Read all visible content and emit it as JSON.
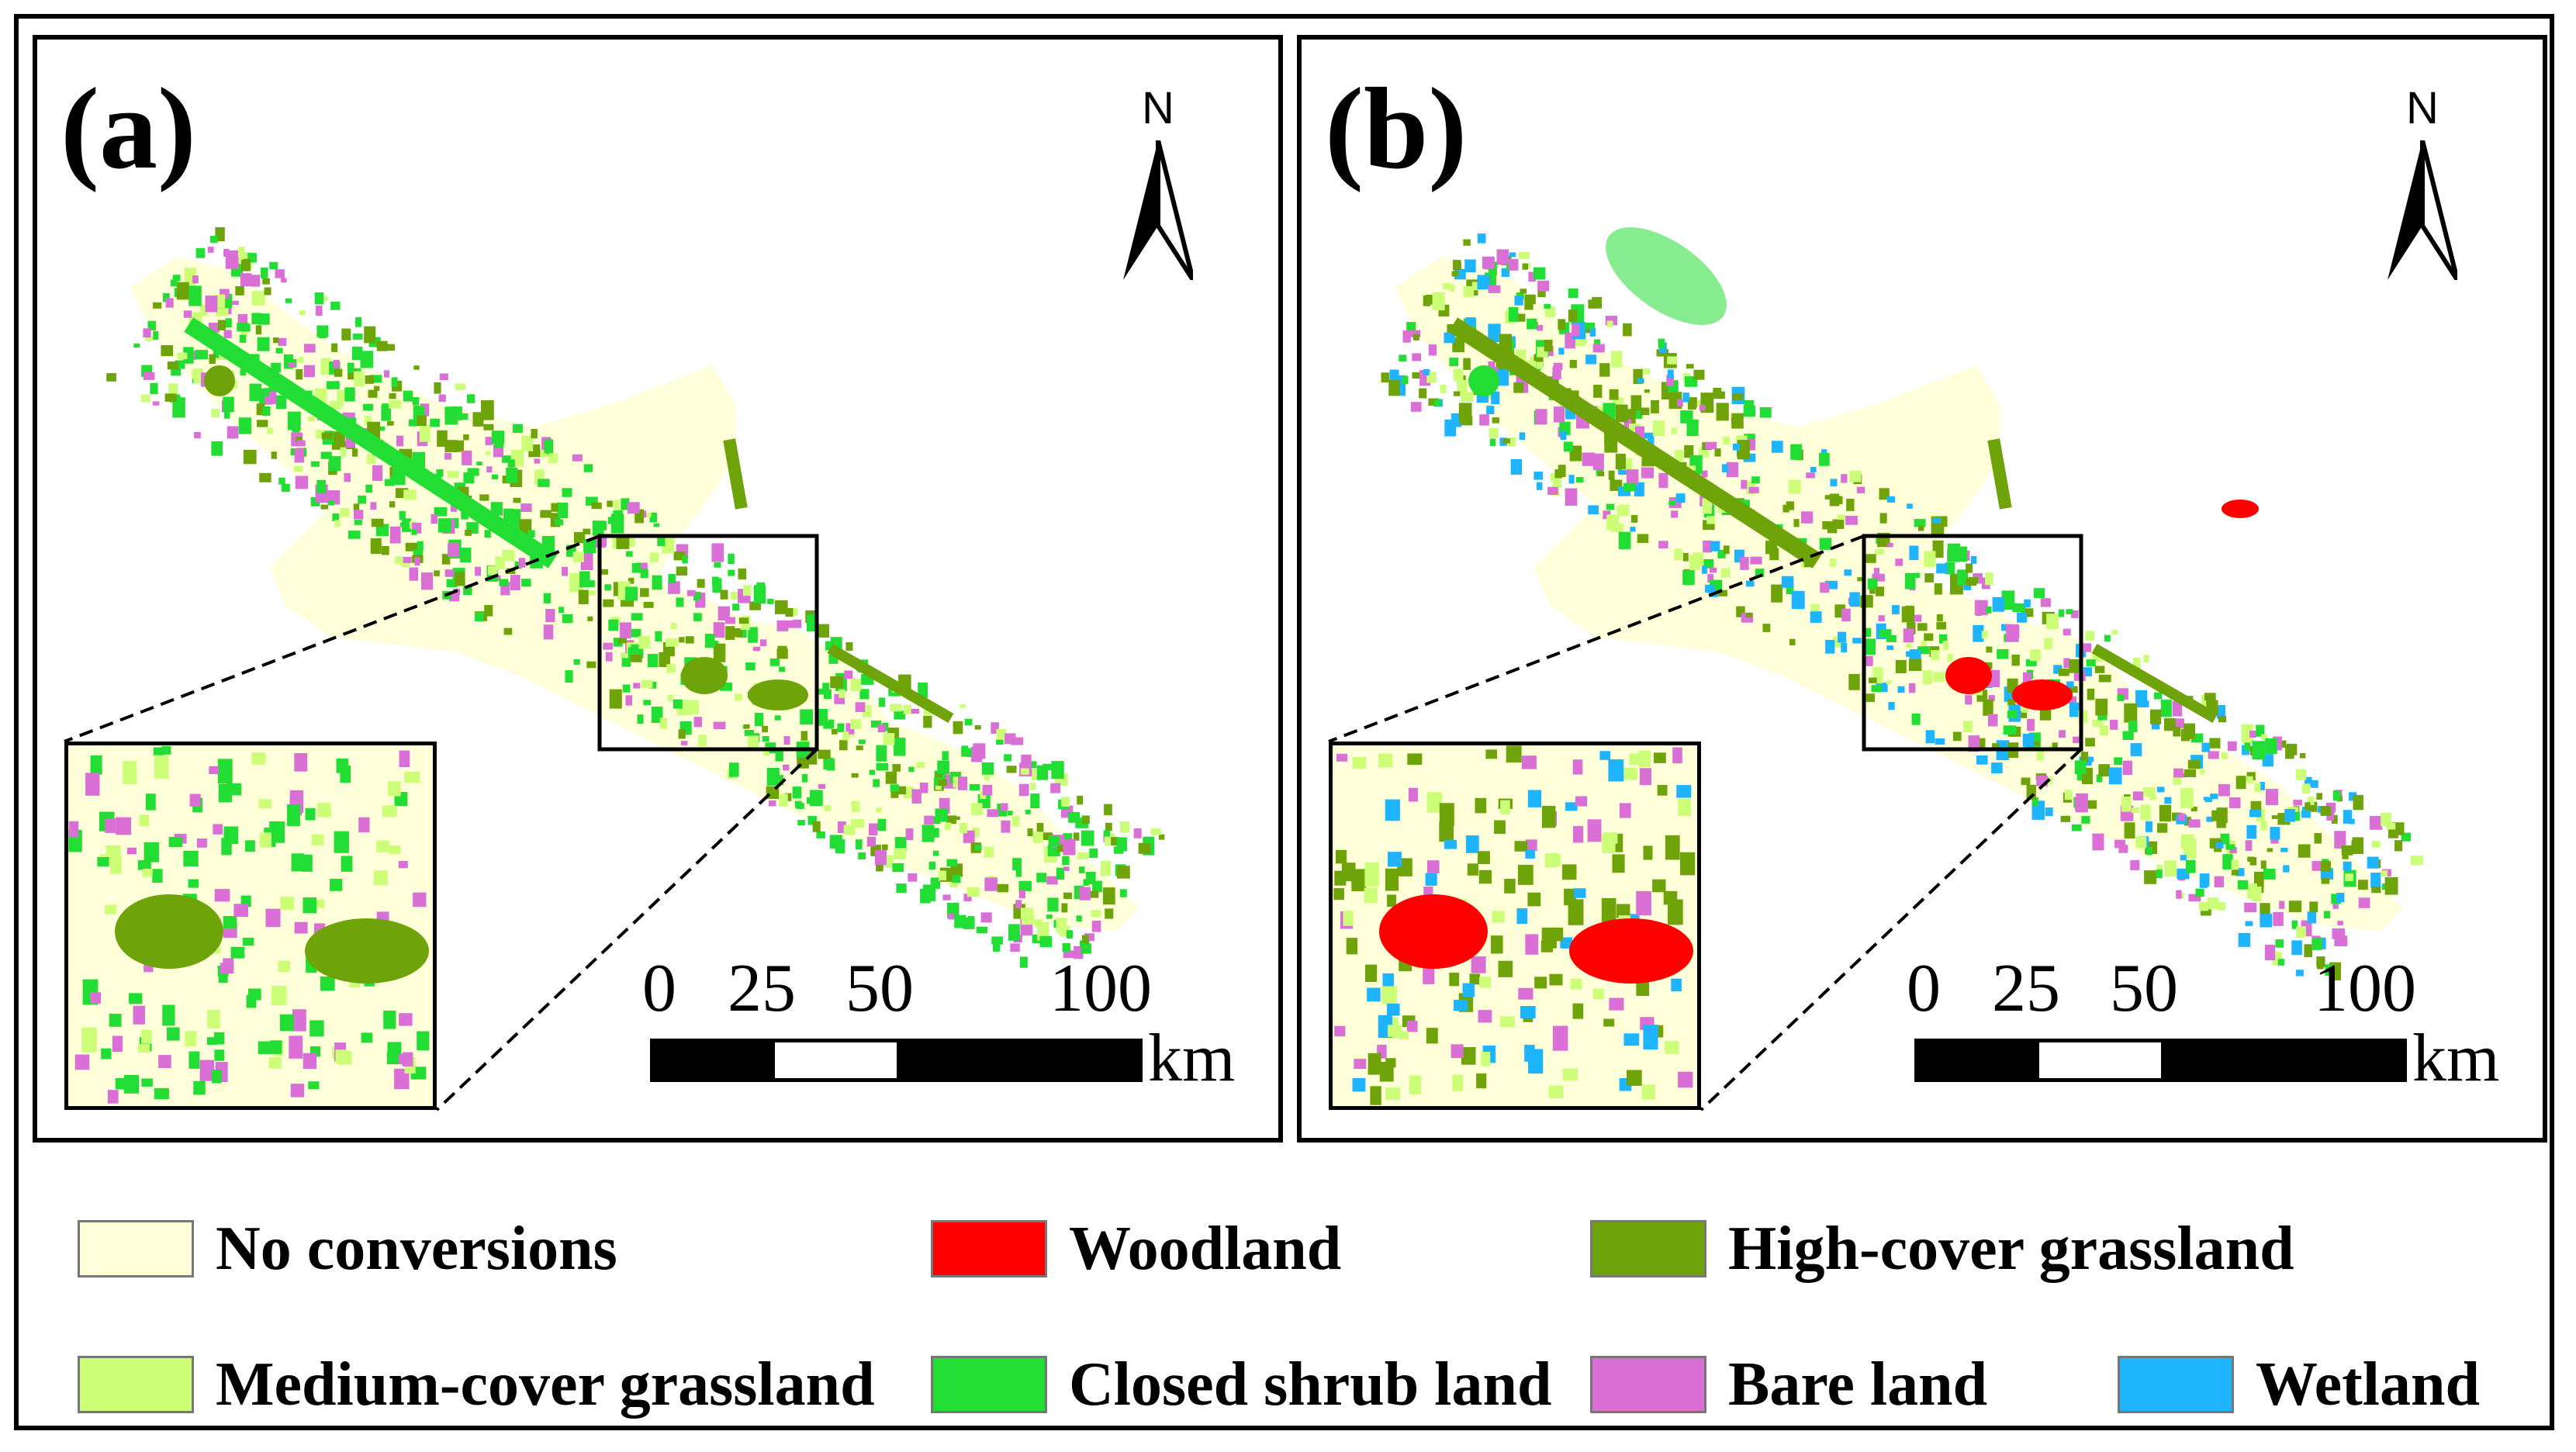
{
  "panels": [
    {
      "label": "(a)",
      "north_label": "N"
    },
    {
      "label": "(b)",
      "north_label": "N"
    }
  ],
  "scale": {
    "ticks": [
      "0",
      "25",
      "50",
      "100"
    ],
    "unit": "km"
  },
  "colors": {
    "no_conversions": "#FFFFD9",
    "woodland": "#FF0000",
    "high_cover_grassland": "#6FA30A",
    "medium_cover_grassland": "#CCFF77",
    "closed_shrub_land": "#22DD33",
    "bare_land": "#DA70D6",
    "wetland": "#1EB4FF"
  },
  "legend": [
    {
      "label": "No conversions",
      "color": "#FFFFD9",
      "icon": "no-conversions-swatch"
    },
    {
      "label": "Woodland",
      "color": "#FF0000",
      "icon": "woodland-swatch"
    },
    {
      "label": "High-cover grassland",
      "color": "#6FA30A",
      "icon": "high-cover-grassland-swatch"
    },
    {
      "label": "Medium-cover grassland",
      "color": "#CCFF77",
      "icon": "medium-cover-grassland-swatch"
    },
    {
      "label": "Closed shrub land",
      "color": "#22DD33",
      "icon": "closed-shrub-land-swatch"
    },
    {
      "label": "Bare land",
      "color": "#DA70D6",
      "icon": "bare-land-swatch"
    },
    {
      "label": "Wetland",
      "color": "#1EB4FF",
      "icon": "wetland-swatch"
    }
  ]
}
